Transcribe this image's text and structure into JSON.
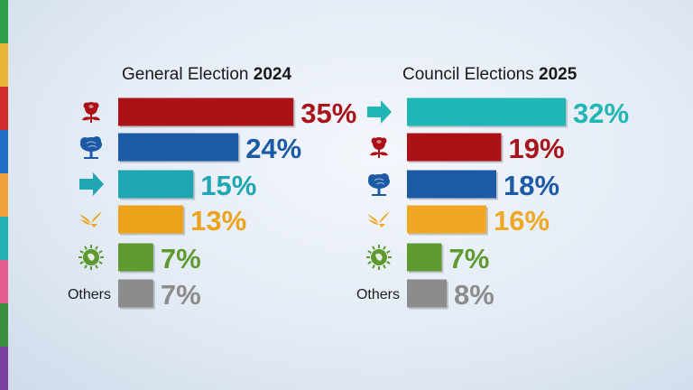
{
  "stripe_colors": [
    "#2e9d4a",
    "#e8b63b",
    "#d22d2d",
    "#1f6fc8",
    "#f2a23a",
    "#22b0b5",
    "#e85d8f",
    "#3a8f3f",
    "#7a3f9c"
  ],
  "chart_data": [
    {
      "type": "bar",
      "orientation": "horizontal",
      "title_prefix": "General Election",
      "title_year": "2024",
      "categories": [
        "Labour",
        "Conservative",
        "Reform UK",
        "Liberal Democrats",
        "Green",
        "Others"
      ],
      "icons": [
        "rose-icon",
        "tree-icon",
        "arrow-icon",
        "bird-icon",
        "globe-icon",
        "none"
      ],
      "values": [
        35,
        24,
        15,
        13,
        7,
        7
      ],
      "labels": [
        "35%",
        "24%",
        "15%",
        "13%",
        "7%",
        "7%"
      ],
      "colors": [
        "#ab1116",
        "#1d5aa6",
        "#1fa6b2",
        "#eda21c",
        "#5e9a30",
        "#8c8c8c"
      ],
      "label_colors": [
        "#a8141a",
        "#1d5aa6",
        "#1fa6b2",
        "#eda21c",
        "#5e9a30",
        "#8c8c8c"
      ],
      "others_label": "Others"
    },
    {
      "type": "bar",
      "orientation": "horizontal",
      "title_prefix": "Council Elections",
      "title_year": "2025",
      "categories": [
        "Reform UK",
        "Labour",
        "Conservative",
        "Liberal Democrats",
        "Green",
        "Others"
      ],
      "icons": [
        "arrow-icon",
        "rose-icon",
        "tree-icon",
        "bird-icon",
        "globe-icon",
        "none"
      ],
      "values": [
        32,
        19,
        18,
        16,
        7,
        8
      ],
      "labels": [
        "32%",
        "19%",
        "18%",
        "16%",
        "7%",
        "8%"
      ],
      "colors": [
        "#21b6b6",
        "#ab1116",
        "#1d5aa6",
        "#f0a722",
        "#5e9a30",
        "#8c8c8c"
      ],
      "label_colors": [
        "#21b6b6",
        "#a8141a",
        "#1d5aa6",
        "#f0a722",
        "#5e9a30",
        "#8c8c8c"
      ],
      "others_label": "Others"
    }
  ]
}
